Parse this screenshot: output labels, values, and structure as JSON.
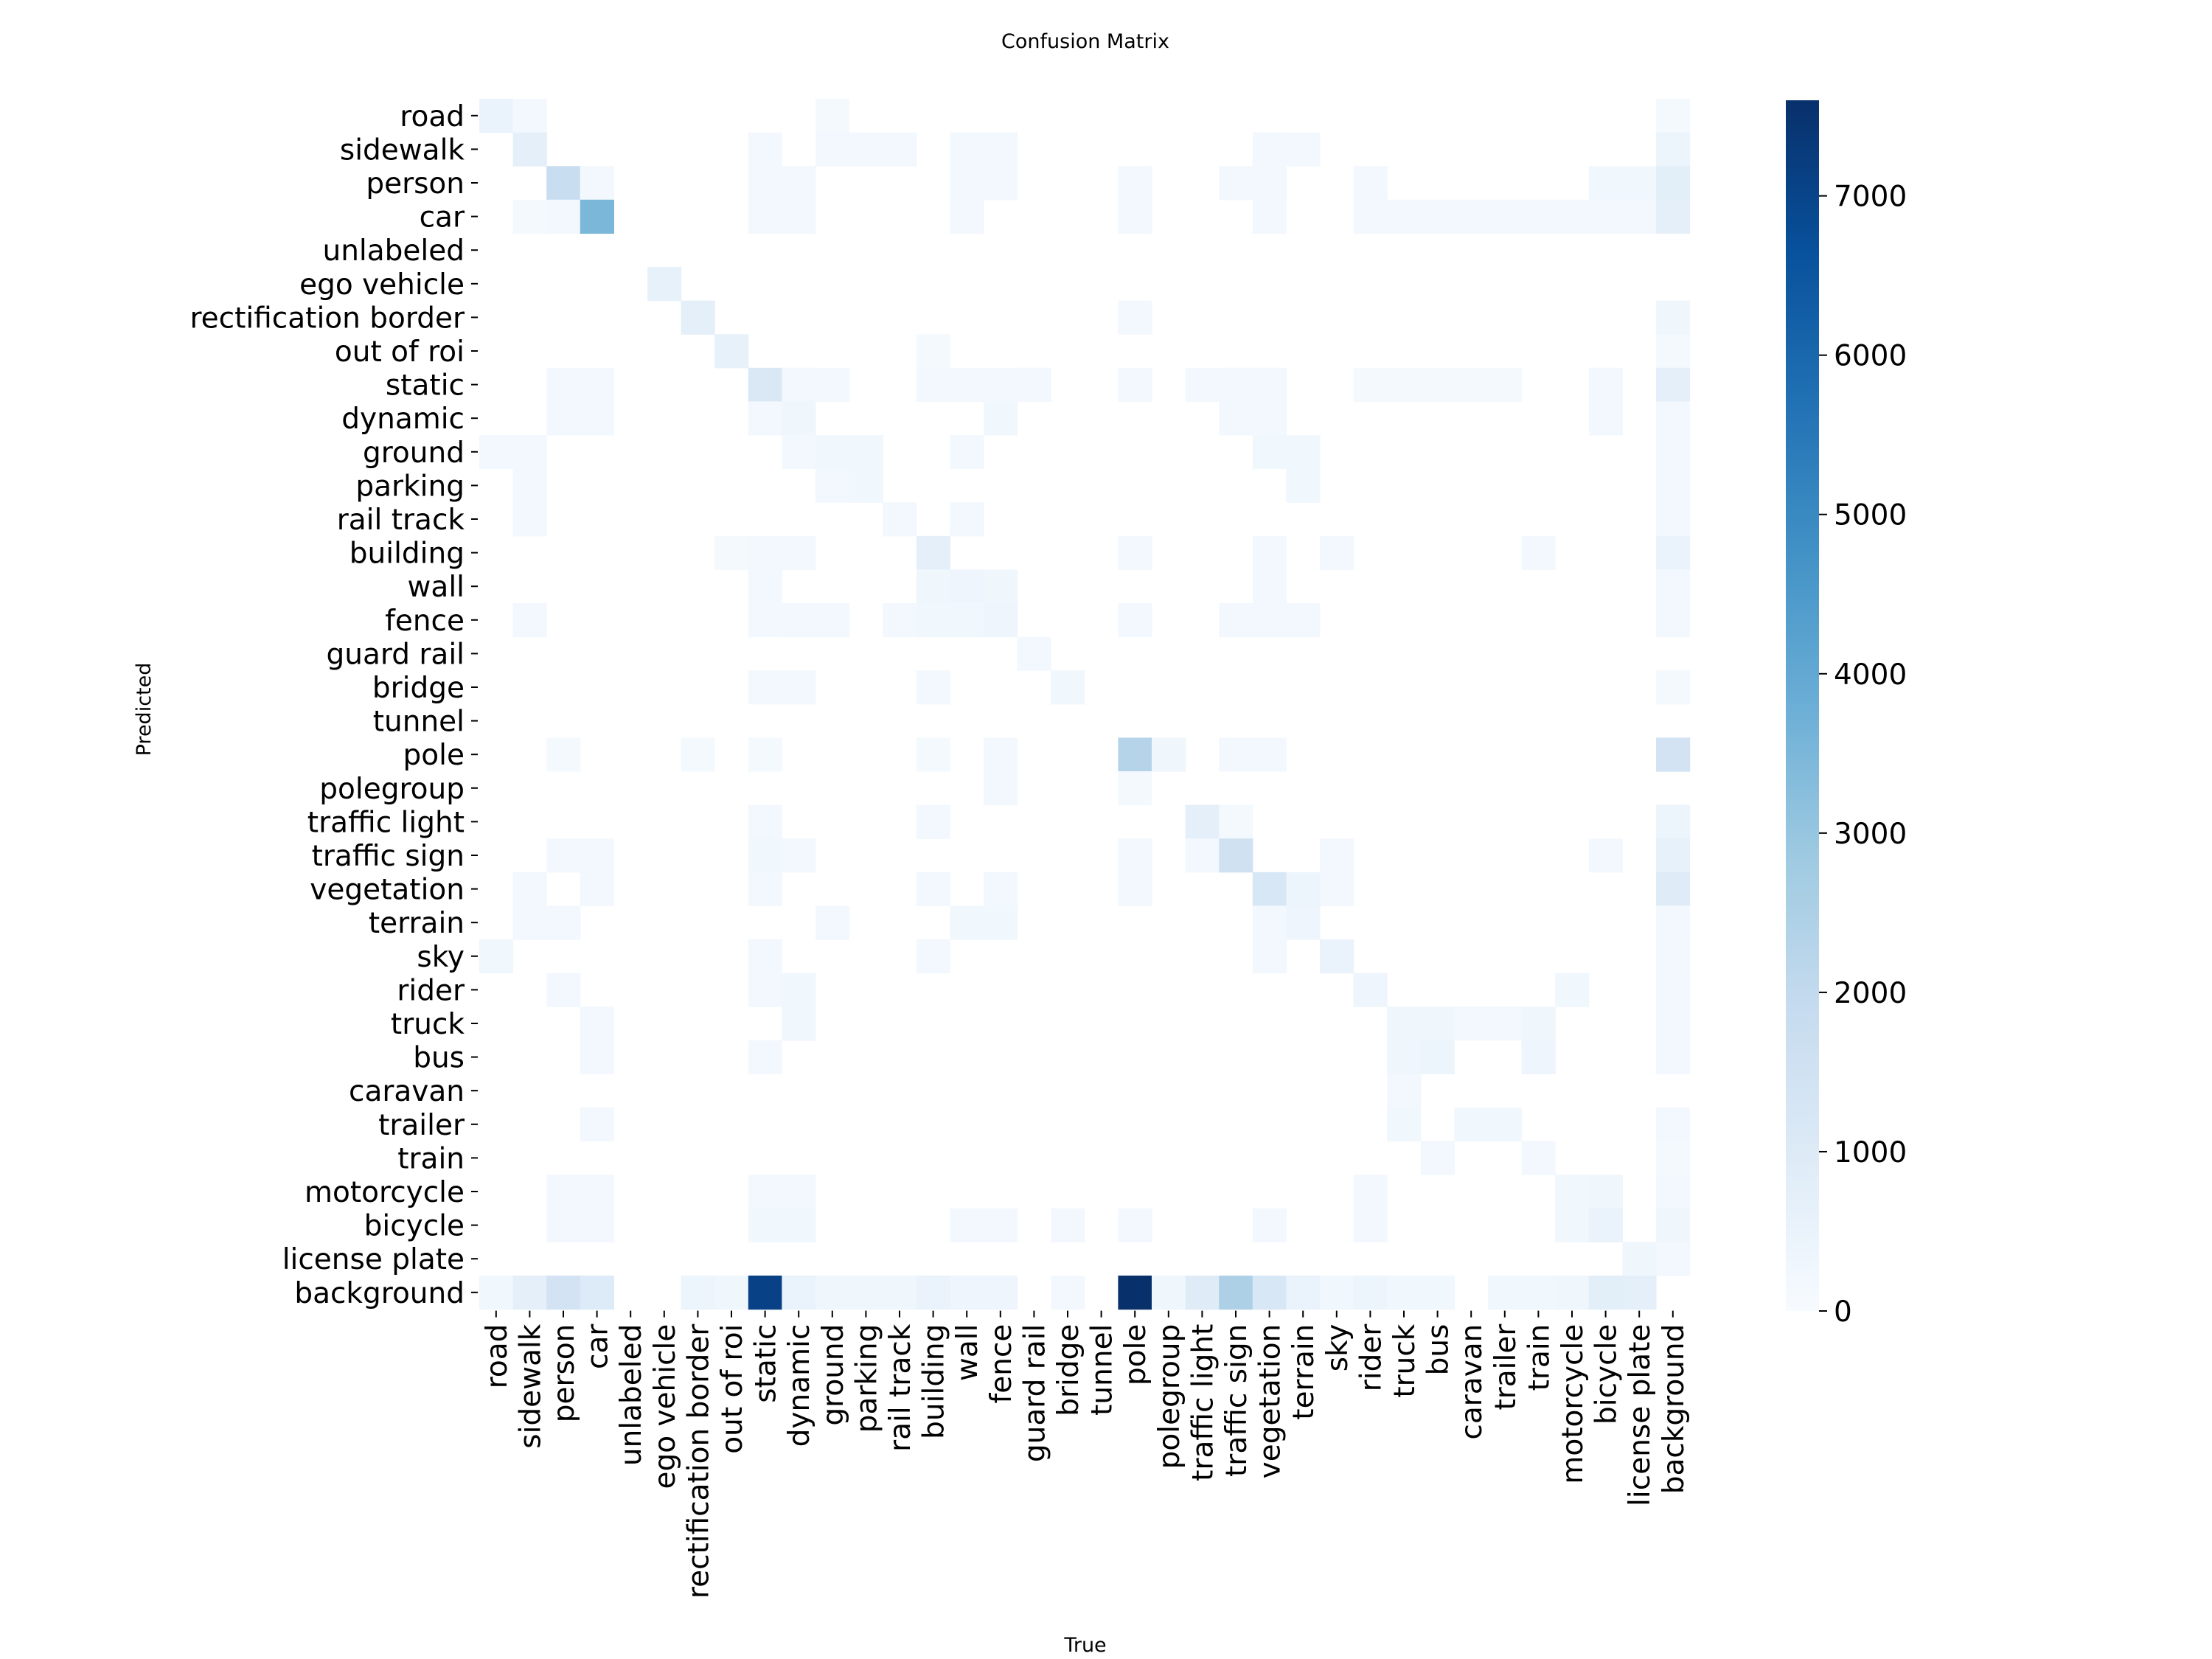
{
  "chart_data": {
    "type": "heatmap",
    "title": "Confusion Matrix",
    "xlabel": "True",
    "ylabel": "Predicted",
    "labels": [
      "road",
      "sidewalk",
      "person",
      "car",
      "unlabeled",
      "ego vehicle",
      "rectification border",
      "out of roi",
      "static",
      "dynamic",
      "ground",
      "parking",
      "rail track",
      "building",
      "wall",
      "fence",
      "guard rail",
      "bridge",
      "tunnel",
      "pole",
      "polegroup",
      "traffic light",
      "traffic sign",
      "vegetation",
      "terrain",
      "sky",
      "rider",
      "truck",
      "bus",
      "caravan",
      "trailer",
      "train",
      "motorcycle",
      "bicycle",
      "license plate",
      "background"
    ],
    "colormap": "Blues",
    "vmin": 0,
    "vmax": 7600,
    "colorbar_ticks": [
      0,
      1000,
      2000,
      3000,
      4000,
      5000,
      6000,
      7000
    ],
    "cells": [
      [
        0,
        0,
        500
      ],
      [
        0,
        1,
        150
      ],
      [
        0,
        10,
        100
      ],
      [
        0,
        35,
        100
      ],
      [
        1,
        1,
        700
      ],
      [
        1,
        8,
        150
      ],
      [
        1,
        10,
        150
      ],
      [
        1,
        11,
        150
      ],
      [
        1,
        12,
        150
      ],
      [
        1,
        14,
        200
      ],
      [
        1,
        15,
        200
      ],
      [
        1,
        23,
        200
      ],
      [
        1,
        24,
        150
      ],
      [
        1,
        35,
        400
      ],
      [
        2,
        2,
        1800
      ],
      [
        2,
        3,
        150
      ],
      [
        2,
        8,
        150
      ],
      [
        2,
        9,
        150
      ],
      [
        2,
        14,
        200
      ],
      [
        2,
        15,
        150
      ],
      [
        2,
        19,
        200
      ],
      [
        2,
        22,
        200
      ],
      [
        2,
        23,
        200
      ],
      [
        2,
        26,
        200
      ],
      [
        2,
        33,
        250
      ],
      [
        2,
        34,
        250
      ],
      [
        2,
        35,
        800
      ],
      [
        3,
        1,
        100
      ],
      [
        3,
        2,
        150
      ],
      [
        3,
        3,
        3500
      ],
      [
        3,
        8,
        200
      ],
      [
        3,
        9,
        200
      ],
      [
        3,
        14,
        150
      ],
      [
        3,
        19,
        200
      ],
      [
        3,
        23,
        150
      ],
      [
        3,
        26,
        150
      ],
      [
        3,
        27,
        150
      ],
      [
        3,
        28,
        150
      ],
      [
        3,
        29,
        150
      ],
      [
        3,
        30,
        150
      ],
      [
        3,
        31,
        150
      ],
      [
        3,
        32,
        150
      ],
      [
        3,
        33,
        150
      ],
      [
        3,
        34,
        150
      ],
      [
        3,
        35,
        700
      ],
      [
        5,
        5,
        600
      ],
      [
        6,
        6,
        700
      ],
      [
        6,
        19,
        150
      ],
      [
        6,
        35,
        300
      ],
      [
        7,
        7,
        600
      ],
      [
        7,
        13,
        100
      ],
      [
        7,
        35,
        100
      ],
      [
        8,
        2,
        150
      ],
      [
        8,
        3,
        150
      ],
      [
        8,
        8,
        1100
      ],
      [
        8,
        9,
        200
      ],
      [
        8,
        10,
        150
      ],
      [
        8,
        13,
        150
      ],
      [
        8,
        14,
        150
      ],
      [
        8,
        15,
        150
      ],
      [
        8,
        16,
        200
      ],
      [
        8,
        19,
        150
      ],
      [
        8,
        21,
        150
      ],
      [
        8,
        22,
        200
      ],
      [
        8,
        23,
        200
      ],
      [
        8,
        26,
        100
      ],
      [
        8,
        27,
        100
      ],
      [
        8,
        28,
        100
      ],
      [
        8,
        29,
        100
      ],
      [
        8,
        30,
        100
      ],
      [
        8,
        33,
        200
      ],
      [
        8,
        35,
        700
      ],
      [
        9,
        2,
        150
      ],
      [
        9,
        3,
        150
      ],
      [
        9,
        8,
        200
      ],
      [
        9,
        9,
        300
      ],
      [
        9,
        15,
        250
      ],
      [
        9,
        22,
        200
      ],
      [
        9,
        23,
        200
      ],
      [
        9,
        33,
        200
      ],
      [
        9,
        35,
        150
      ],
      [
        10,
        0,
        150
      ],
      [
        10,
        1,
        200
      ],
      [
        10,
        9,
        200
      ],
      [
        10,
        10,
        250
      ],
      [
        10,
        11,
        250
      ],
      [
        10,
        14,
        200
      ],
      [
        10,
        23,
        250
      ],
      [
        10,
        24,
        250
      ],
      [
        10,
        35,
        150
      ],
      [
        11,
        1,
        150
      ],
      [
        11,
        10,
        200
      ],
      [
        11,
        11,
        250
      ],
      [
        11,
        24,
        250
      ],
      [
        11,
        35,
        150
      ],
      [
        12,
        1,
        150
      ],
      [
        12,
        12,
        200
      ],
      [
        12,
        14,
        200
      ],
      [
        12,
        35,
        150
      ],
      [
        13,
        7,
        100
      ],
      [
        13,
        8,
        150
      ],
      [
        13,
        9,
        150
      ],
      [
        13,
        13,
        700
      ],
      [
        13,
        19,
        150
      ],
      [
        13,
        23,
        150
      ],
      [
        13,
        25,
        200
      ],
      [
        13,
        31,
        150
      ],
      [
        13,
        35,
        500
      ],
      [
        14,
        8,
        150
      ],
      [
        14,
        13,
        300
      ],
      [
        14,
        14,
        350
      ],
      [
        14,
        15,
        300
      ],
      [
        14,
        23,
        150
      ],
      [
        14,
        35,
        150
      ],
      [
        15,
        1,
        200
      ],
      [
        15,
        8,
        150
      ],
      [
        15,
        9,
        200
      ],
      [
        15,
        10,
        200
      ],
      [
        15,
        12,
        200
      ],
      [
        15,
        13,
        250
      ],
      [
        15,
        14,
        250
      ],
      [
        15,
        15,
        350
      ],
      [
        15,
        19,
        150
      ],
      [
        15,
        22,
        200
      ],
      [
        15,
        23,
        200
      ],
      [
        15,
        24,
        200
      ],
      [
        15,
        35,
        200
      ],
      [
        16,
        16,
        200
      ],
      [
        17,
        8,
        200
      ],
      [
        17,
        9,
        200
      ],
      [
        17,
        13,
        150
      ],
      [
        17,
        17,
        250
      ],
      [
        17,
        35,
        100
      ],
      [
        19,
        2,
        100
      ],
      [
        19,
        6,
        100
      ],
      [
        19,
        8,
        100
      ],
      [
        19,
        13,
        100
      ],
      [
        19,
        15,
        150
      ],
      [
        19,
        19,
        2300
      ],
      [
        19,
        20,
        300
      ],
      [
        19,
        22,
        150
      ],
      [
        19,
        23,
        150
      ],
      [
        19,
        35,
        1400
      ],
      [
        20,
        15,
        200
      ],
      [
        20,
        19,
        100
      ],
      [
        21,
        8,
        200
      ],
      [
        21,
        13,
        200
      ],
      [
        21,
        21,
        700
      ],
      [
        21,
        22,
        100
      ],
      [
        21,
        35,
        400
      ],
      [
        22,
        2,
        150
      ],
      [
        22,
        3,
        150
      ],
      [
        22,
        8,
        250
      ],
      [
        22,
        9,
        200
      ],
      [
        22,
        19,
        200
      ],
      [
        22,
        21,
        150
      ],
      [
        22,
        22,
        1500
      ],
      [
        22,
        25,
        150
      ],
      [
        22,
        33,
        150
      ],
      [
        22,
        35,
        600
      ],
      [
        23,
        1,
        150
      ],
      [
        23,
        3,
        200
      ],
      [
        23,
        8,
        200
      ],
      [
        23,
        13,
        200
      ],
      [
        23,
        15,
        200
      ],
      [
        23,
        19,
        200
      ],
      [
        23,
        23,
        1200
      ],
      [
        23,
        24,
        400
      ],
      [
        23,
        25,
        200
      ],
      [
        23,
        35,
        900
      ],
      [
        24,
        1,
        200
      ],
      [
        24,
        2,
        200
      ],
      [
        24,
        10,
        150
      ],
      [
        24,
        14,
        250
      ],
      [
        24,
        15,
        250
      ],
      [
        24,
        23,
        200
      ],
      [
        24,
        24,
        350
      ],
      [
        24,
        35,
        150
      ],
      [
        25,
        0,
        250
      ],
      [
        25,
        8,
        200
      ],
      [
        25,
        13,
        200
      ],
      [
        25,
        23,
        200
      ],
      [
        25,
        25,
        500
      ],
      [
        25,
        35,
        200
      ],
      [
        26,
        2,
        150
      ],
      [
        26,
        8,
        200
      ],
      [
        26,
        9,
        250
      ],
      [
        26,
        26,
        350
      ],
      [
        26,
        32,
        250
      ],
      [
        26,
        35,
        150
      ],
      [
        27,
        3,
        200
      ],
      [
        27,
        9,
        250
      ],
      [
        27,
        27,
        300
      ],
      [
        27,
        28,
        300
      ],
      [
        27,
        29,
        200
      ],
      [
        27,
        30,
        200
      ],
      [
        27,
        31,
        300
      ],
      [
        27,
        35,
        150
      ],
      [
        28,
        3,
        200
      ],
      [
        28,
        8,
        150
      ],
      [
        28,
        27,
        300
      ],
      [
        28,
        28,
        400
      ],
      [
        28,
        31,
        350
      ],
      [
        28,
        35,
        150
      ],
      [
        29,
        27,
        200
      ],
      [
        30,
        3,
        200
      ],
      [
        30,
        27,
        250
      ],
      [
        30,
        29,
        250
      ],
      [
        30,
        30,
        250
      ],
      [
        30,
        35,
        150
      ],
      [
        31,
        28,
        200
      ],
      [
        31,
        31,
        200
      ],
      [
        31,
        35,
        100
      ],
      [
        32,
        2,
        150
      ],
      [
        32,
        3,
        150
      ],
      [
        32,
        8,
        200
      ],
      [
        32,
        9,
        200
      ],
      [
        32,
        26,
        150
      ],
      [
        32,
        32,
        250
      ],
      [
        32,
        33,
        300
      ],
      [
        32,
        35,
        150
      ],
      [
        33,
        2,
        150
      ],
      [
        33,
        3,
        150
      ],
      [
        33,
        8,
        250
      ],
      [
        33,
        9,
        250
      ],
      [
        33,
        14,
        200
      ],
      [
        33,
        15,
        200
      ],
      [
        33,
        17,
        150
      ],
      [
        33,
        19,
        150
      ],
      [
        33,
        23,
        150
      ],
      [
        33,
        26,
        200
      ],
      [
        33,
        32,
        250
      ],
      [
        33,
        33,
        500
      ],
      [
        33,
        35,
        300
      ],
      [
        34,
        34,
        300
      ],
      [
        34,
        35,
        150
      ],
      [
        35,
        0,
        250
      ],
      [
        35,
        1,
        700
      ],
      [
        35,
        2,
        1400
      ],
      [
        35,
        3,
        1000
      ],
      [
        35,
        6,
        400
      ],
      [
        35,
        7,
        300
      ],
      [
        35,
        8,
        7100
      ],
      [
        35,
        9,
        500
      ],
      [
        35,
        10,
        300
      ],
      [
        35,
        11,
        300
      ],
      [
        35,
        12,
        300
      ],
      [
        35,
        13,
        500
      ],
      [
        35,
        14,
        350
      ],
      [
        35,
        15,
        350
      ],
      [
        35,
        17,
        200
      ],
      [
        35,
        19,
        7600
      ],
      [
        35,
        20,
        300
      ],
      [
        35,
        21,
        900
      ],
      [
        35,
        22,
        2500
      ],
      [
        35,
        23,
        1200
      ],
      [
        35,
        24,
        500
      ],
      [
        35,
        25,
        250
      ],
      [
        35,
        26,
        400
      ],
      [
        35,
        27,
        250
      ],
      [
        35,
        28,
        250
      ],
      [
        35,
        30,
        250
      ],
      [
        35,
        31,
        250
      ],
      [
        35,
        32,
        300
      ],
      [
        35,
        33,
        800
      ],
      [
        35,
        34,
        700
      ]
    ]
  }
}
